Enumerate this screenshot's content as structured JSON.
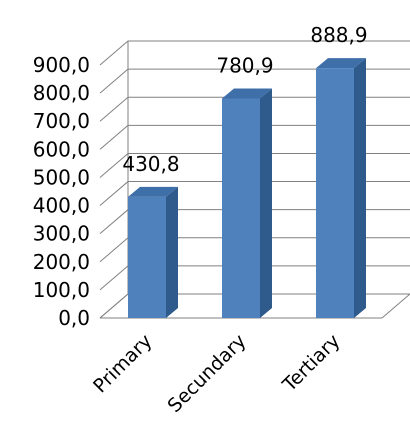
{
  "chart_data": {
    "type": "bar",
    "categories": [
      "Primary",
      "Secundary",
      "Tertiary"
    ],
    "values": [
      430.8,
      780.9,
      888.9
    ],
    "data_labels": [
      "430,8",
      "780,9",
      "888,9"
    ],
    "ylim": [
      0,
      900
    ],
    "yticks": [
      "0,0",
      "100,0",
      "200,0",
      "300,0",
      "400,0",
      "500,0",
      "600,0",
      "700,0",
      "800,0",
      "900,0"
    ],
    "grid": true,
    "style": "3d-column",
    "colors": {
      "bar_front": "#4F81BD",
      "bar_side": "#2E5A8C",
      "bar_top": "#3F6FA8",
      "grid": "#808080"
    }
  }
}
